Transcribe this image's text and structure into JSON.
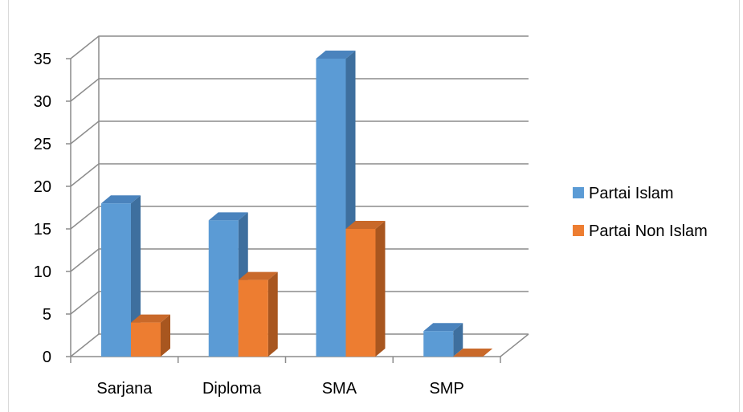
{
  "chart_data": {
    "type": "bar",
    "three_d": true,
    "categories": [
      "Sarjana",
      "Diploma",
      "SMA",
      "SMP"
    ],
    "series": [
      {
        "name": "Partai Islam",
        "values": [
          18,
          16,
          35,
          3
        ],
        "color": "#5b9bd5",
        "side_color": "#3e6f9e",
        "top_color": "#4a83bd"
      },
      {
        "name": "Partai Non Islam",
        "values": [
          4,
          9,
          15,
          0
        ],
        "color": "#ed7d31",
        "side_color": "#a8561f",
        "top_color": "#c9692a"
      }
    ],
    "yticks": [
      0,
      5,
      10,
      15,
      20,
      25,
      30,
      35
    ],
    "ylim": [
      0,
      35
    ],
    "grid": true,
    "legend_position": "right"
  }
}
